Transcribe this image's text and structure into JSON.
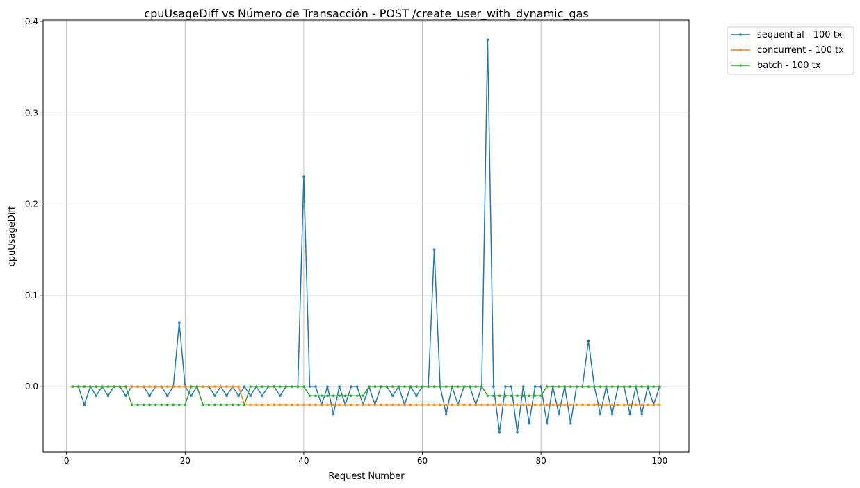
{
  "chart_data": {
    "type": "line",
    "title": "cpuUsageDiff vs Número de Transacción - POST /create_user_with_dynamic_gas",
    "xlabel": "Request Number",
    "ylabel": "cpuUsageDiff",
    "xlim": [
      -3.95,
      104.95
    ],
    "ylim": [
      -0.0715,
      0.4015
    ],
    "xticks": [
      0,
      20,
      40,
      60,
      80,
      100
    ],
    "yticks": [
      0.0,
      0.1,
      0.2,
      0.3,
      0.4
    ],
    "ytick_labels": [
      "0.0",
      "0.1",
      "0.2",
      "0.3",
      "0.4"
    ],
    "grid": true,
    "legend_position": "outside-top-right",
    "series": [
      {
        "name": "sequential - 100 tx",
        "color": "#1f77b4",
        "x": [
          1,
          2,
          3,
          4,
          5,
          6,
          7,
          8,
          9,
          10,
          11,
          12,
          13,
          14,
          15,
          16,
          17,
          18,
          19,
          20,
          21,
          22,
          23,
          24,
          25,
          26,
          27,
          28,
          29,
          30,
          31,
          32,
          33,
          34,
          35,
          36,
          37,
          38,
          39,
          40,
          41,
          42,
          43,
          44,
          45,
          46,
          47,
          48,
          49,
          50,
          51,
          52,
          53,
          54,
          55,
          56,
          57,
          58,
          59,
          60,
          61,
          62,
          63,
          64,
          65,
          66,
          67,
          68,
          69,
          70,
          71,
          72,
          73,
          74,
          75,
          76,
          77,
          78,
          79,
          80,
          81,
          82,
          83,
          84,
          85,
          86,
          87,
          88,
          89,
          90,
          91,
          92,
          93,
          94,
          95,
          96,
          97,
          98,
          99,
          100
        ],
        "y": [
          0,
          0,
          -0.02,
          0,
          -0.01,
          0,
          -0.01,
          0,
          0,
          -0.01,
          0,
          0,
          0,
          -0.01,
          0,
          0,
          -0.01,
          0,
          0.07,
          0,
          -0.01,
          0,
          0,
          0,
          -0.01,
          0,
          -0.01,
          0,
          -0.01,
          0,
          -0.01,
          0,
          -0.01,
          0,
          0,
          -0.01,
          0,
          0,
          0,
          0.23,
          0,
          0,
          -0.02,
          0,
          -0.03,
          0,
          -0.02,
          0,
          0,
          -0.02,
          0,
          -0.02,
          0,
          0,
          -0.01,
          0,
          -0.02,
          0,
          -0.01,
          0,
          0,
          0.15,
          0,
          -0.03,
          0,
          -0.02,
          0,
          0,
          -0.02,
          0,
          0.38,
          0,
          -0.05,
          0,
          0,
          -0.05,
          0,
          -0.04,
          0,
          0,
          -0.04,
          0,
          -0.03,
          0,
          -0.04,
          0,
          0,
          0.05,
          0,
          -0.03,
          0,
          -0.03,
          0,
          0,
          -0.03,
          0,
          -0.03,
          0,
          -0.02,
          0
        ]
      },
      {
        "name": "concurrent - 100 tx",
        "color": "#ff7f0e",
        "x": [
          1,
          2,
          3,
          4,
          5,
          6,
          7,
          8,
          9,
          10,
          11,
          12,
          13,
          14,
          15,
          16,
          17,
          18,
          19,
          20,
          21,
          22,
          23,
          24,
          25,
          26,
          27,
          28,
          29,
          30,
          31,
          32,
          33,
          34,
          35,
          36,
          37,
          38,
          39,
          40,
          41,
          42,
          43,
          44,
          45,
          46,
          47,
          48,
          49,
          50,
          51,
          52,
          53,
          54,
          55,
          56,
          57,
          58,
          59,
          60,
          61,
          62,
          63,
          64,
          65,
          66,
          67,
          68,
          69,
          70,
          71,
          72,
          73,
          74,
          75,
          76,
          77,
          78,
          79,
          80,
          81,
          82,
          83,
          84,
          85,
          86,
          87,
          88,
          89,
          90,
          91,
          92,
          93,
          94,
          95,
          96,
          97,
          98,
          99,
          100
        ],
        "y": [
          0,
          0,
          0,
          0,
          0,
          0,
          0,
          0,
          0,
          0,
          0,
          0,
          0,
          0,
          0,
          0,
          0,
          0,
          0,
          0,
          0,
          0,
          0,
          0,
          0,
          0,
          0,
          0,
          0,
          -0.02,
          -0.02,
          -0.02,
          -0.02,
          -0.02,
          -0.02,
          -0.02,
          -0.02,
          -0.02,
          -0.02,
          -0.02,
          -0.02,
          -0.02,
          -0.02,
          -0.02,
          -0.02,
          -0.02,
          -0.02,
          -0.02,
          -0.02,
          -0.02,
          -0.02,
          -0.02,
          -0.02,
          -0.02,
          -0.02,
          -0.02,
          -0.02,
          -0.02,
          -0.02,
          -0.02,
          -0.02,
          -0.02,
          -0.02,
          -0.02,
          -0.02,
          -0.02,
          -0.02,
          -0.02,
          -0.02,
          -0.02,
          -0.02,
          -0.02,
          -0.02,
          -0.02,
          -0.02,
          -0.02,
          -0.02,
          -0.02,
          -0.02,
          -0.02,
          -0.02,
          -0.02,
          -0.02,
          -0.02,
          -0.02,
          -0.02,
          -0.02,
          -0.02,
          -0.02,
          -0.02,
          -0.02,
          -0.02,
          -0.02,
          -0.02,
          -0.02,
          -0.02,
          -0.02,
          -0.02,
          -0.02,
          -0.02
        ]
      },
      {
        "name": "batch - 100 tx",
        "color": "#2ca02c",
        "x": [
          1,
          2,
          3,
          4,
          5,
          6,
          7,
          8,
          9,
          10,
          11,
          12,
          13,
          14,
          15,
          16,
          17,
          18,
          19,
          20,
          21,
          22,
          23,
          24,
          25,
          26,
          27,
          28,
          29,
          30,
          31,
          32,
          33,
          34,
          35,
          36,
          37,
          38,
          39,
          40,
          41,
          42,
          43,
          44,
          45,
          46,
          47,
          48,
          49,
          50,
          51,
          52,
          53,
          54,
          55,
          56,
          57,
          58,
          59,
          60,
          61,
          62,
          63,
          64,
          65,
          66,
          67,
          68,
          69,
          70,
          71,
          72,
          73,
          74,
          75,
          76,
          77,
          78,
          79,
          80,
          81,
          82,
          83,
          84,
          85,
          86,
          87,
          88,
          89,
          90,
          91,
          92,
          93,
          94,
          95,
          96,
          97,
          98,
          99,
          100
        ],
        "y": [
          0,
          0,
          0,
          0,
          0,
          0,
          0,
          0,
          0,
          0,
          -0.02,
          -0.02,
          -0.02,
          -0.02,
          -0.02,
          -0.02,
          -0.02,
          -0.02,
          -0.02,
          -0.02,
          0,
          0,
          -0.02,
          -0.02,
          -0.02,
          -0.02,
          -0.02,
          -0.02,
          -0.02,
          -0.02,
          0,
          0,
          0,
          0,
          0,
          0,
          0,
          0,
          0,
          0,
          -0.01,
          -0.01,
          -0.01,
          -0.01,
          -0.01,
          -0.01,
          -0.01,
          -0.01,
          -0.01,
          -0.01,
          0,
          0,
          0,
          0,
          0,
          0,
          0,
          0,
          0,
          0,
          0,
          0,
          0,
          0,
          0,
          0,
          0,
          0,
          0,
          0,
          -0.01,
          -0.01,
          -0.01,
          -0.01,
          -0.01,
          -0.01,
          -0.01,
          -0.01,
          -0.01,
          -0.01,
          0,
          0,
          0,
          0,
          0,
          0,
          0,
          0,
          0,
          0,
          0,
          0,
          0,
          0,
          0,
          0,
          0,
          0,
          0,
          0
        ]
      }
    ]
  }
}
